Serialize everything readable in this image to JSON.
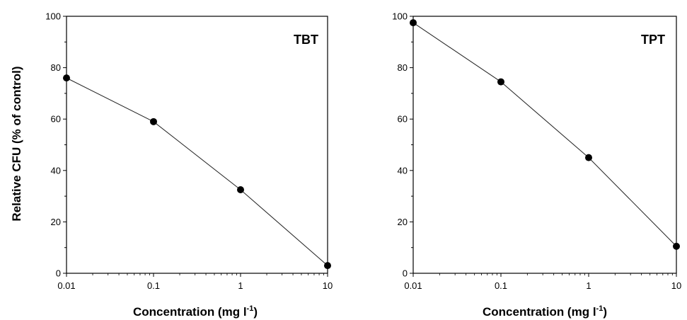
{
  "ylabel": "Relative CFU (% of control)",
  "chart_data": [
    {
      "type": "line",
      "title": "TBT",
      "xlabel": "Concentration (mg l",
      "xlabel_sup": "-1",
      "xlabel_close": ")",
      "xscale": "log",
      "xlim": [
        0.01,
        10
      ],
      "ylim": [
        0,
        100
      ],
      "xticks": [
        "0.01",
        "0.1",
        "1",
        "10"
      ],
      "yticks": [
        "0",
        "20",
        "40",
        "60",
        "80",
        "100"
      ],
      "x": [
        0.01,
        0.1,
        1,
        10
      ],
      "y": [
        76,
        59,
        32.5,
        3
      ]
    },
    {
      "type": "line",
      "title": "TPT",
      "xlabel": "Concentration (mg l",
      "xlabel_sup": "-1",
      "xlabel_close": ")",
      "xscale": "log",
      "xlim": [
        0.01,
        10
      ],
      "ylim": [
        0,
        100
      ],
      "xticks": [
        "0.01",
        "0.1",
        "1",
        "10"
      ],
      "yticks": [
        "0",
        "20",
        "40",
        "60",
        "80",
        "100"
      ],
      "x": [
        0.01,
        0.1,
        1,
        10
      ],
      "y": [
        97.5,
        74.5,
        45,
        10.5
      ]
    }
  ]
}
